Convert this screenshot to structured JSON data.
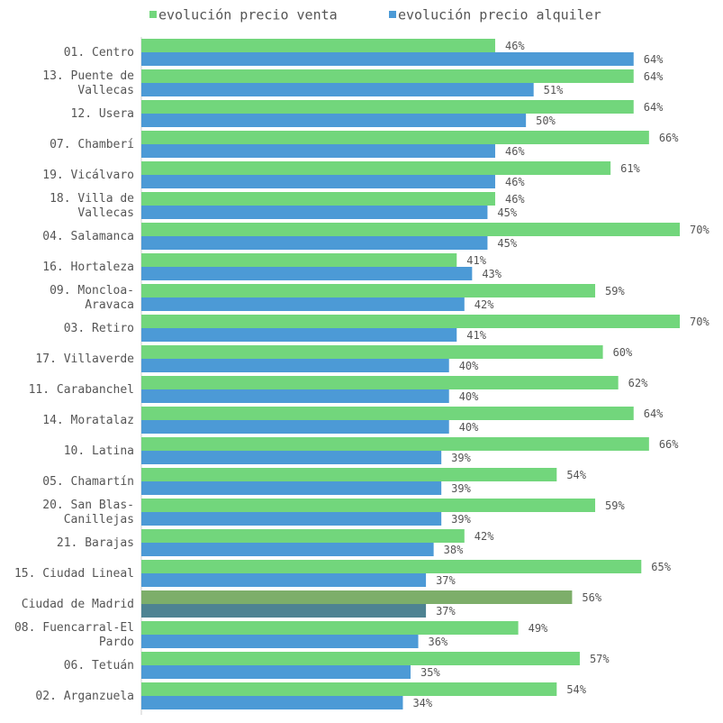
{
  "chart_data": {
    "type": "hbar",
    "categories": [
      "01. Centro",
      "13. Puente de\nVallecas",
      "12. Usera",
      "07. Chamberí",
      "19. Vicálvaro",
      "18. Villa de\nVallecas",
      "04. Salamanca",
      "16. Hortaleza",
      "09. Moncloa-\nAravaca",
      "03. Retiro",
      "17. Villaverde",
      "11. Carabanchel",
      "14. Moratalaz",
      "10. Latina",
      "05. Chamartín",
      "20. San Blas-\nCanillejas",
      "21. Barajas",
      "15. Ciudad Lineal",
      "Ciudad de Madrid",
      "08. Fuencarral-El\nPardo",
      "06. Tetuán",
      "02. Arganzuela"
    ],
    "highlight_index": 18,
    "series": [
      {
        "name": "evolución precio venta",
        "color": "#72d67c",
        "highlight_color": "#7dae6a",
        "label_color": "#5ccb6c",
        "values": [
          46,
          64,
          64,
          66,
          61,
          46,
          70,
          41,
          59,
          70,
          60,
          62,
          64,
          66,
          54,
          59,
          42,
          65,
          56,
          49,
          57,
          54
        ],
        "value_labels": [
          "46%",
          "64%",
          "64%",
          "66%",
          "61%",
          "46%",
          "70%",
          "41%",
          "59%",
          "70%",
          "60%",
          "62%",
          "64%",
          "66%",
          "54%",
          "59%",
          "42%",
          "65%",
          "56%",
          "49%",
          "57%",
          "54%"
        ]
      },
      {
        "name": "evolución precio alquiler",
        "color": "#4c9ad6",
        "highlight_color": "#4e8392",
        "label_color": "#4a86b6",
        "values": [
          64,
          51,
          50,
          46,
          46,
          45,
          45,
          43,
          42,
          41,
          40,
          40,
          40,
          39,
          39,
          39,
          38,
          37,
          37,
          36,
          35,
          34
        ],
        "value_labels": [
          "64%",
          "51%",
          "50%",
          "46%",
          "46%",
          "45%",
          "45%",
          "43%",
          "42%",
          "41%",
          "40%",
          "40%",
          "40%",
          "39%",
          "39%",
          "39%",
          "38%",
          "37%",
          "37%",
          "36%",
          "35%",
          "34%"
        ]
      }
    ]
  }
}
